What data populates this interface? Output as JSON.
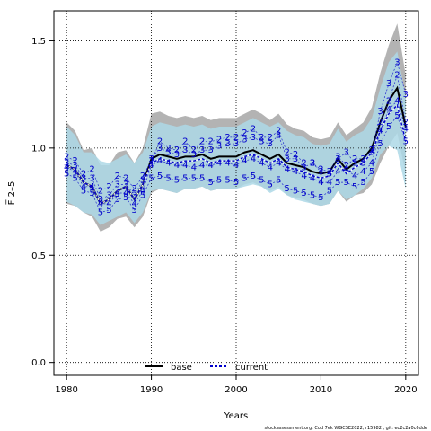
{
  "chart_data": {
    "type": "line",
    "title": "",
    "xlabel": "Years",
    "ylabel": "F̅ 2–5",
    "xlim": [
      1978.5,
      2021.5
    ],
    "ylim": [
      -0.06,
      1.64
    ],
    "xticks": [
      1980,
      1990,
      2000,
      2010,
      2020
    ],
    "xtick_labels": [
      "1980",
      "1990",
      "2000",
      "2010",
      "2020"
    ],
    "yticks": [
      0.0,
      0.5,
      1.0,
      1.5
    ],
    "ytick_labels": [
      "0.0",
      "0.5",
      "1.0",
      "1.5"
    ],
    "grid": true,
    "legend_position": "bottom-center",
    "colors": {
      "base_band": "#b3b3b3",
      "current_band": "#add8e6",
      "overlap_band": "#a3c3d6",
      "base_line": "#000000",
      "current_line": "#0000cc",
      "label_color": "#0000cc"
    },
    "x": [
      1980,
      1981,
      1982,
      1983,
      1984,
      1985,
      1986,
      1987,
      1988,
      1989,
      1990,
      1991,
      1992,
      1993,
      1994,
      1995,
      1996,
      1997,
      1998,
      1999,
      2000,
      2001,
      2002,
      2003,
      2004,
      2005,
      2006,
      2007,
      2008,
      2009,
      2010,
      2011,
      2012,
      2013,
      2014,
      2015,
      2016,
      2017,
      2018,
      2019,
      2020
    ],
    "series": [
      {
        "name": "base",
        "style": "solid",
        "values": [
          0.92,
          0.9,
          0.84,
          0.82,
          0.74,
          0.76,
          0.8,
          0.82,
          0.76,
          0.83,
          0.95,
          0.97,
          0.96,
          0.95,
          0.96,
          0.96,
          0.97,
          0.95,
          0.96,
          0.96,
          0.96,
          0.98,
          0.99,
          0.97,
          0.95,
          0.97,
          0.93,
          0.92,
          0.91,
          0.89,
          0.88,
          0.89,
          0.95,
          0.9,
          0.93,
          0.95,
          1.0,
          1.12,
          1.22,
          1.28,
          1.1
        ],
        "lower": [
          0.74,
          0.73,
          0.7,
          0.68,
          0.61,
          0.63,
          0.67,
          0.68,
          0.63,
          0.68,
          0.79,
          0.81,
          0.8,
          0.79,
          0.81,
          0.81,
          0.82,
          0.8,
          0.81,
          0.81,
          0.81,
          0.83,
          0.84,
          0.82,
          0.8,
          0.82,
          0.78,
          0.77,
          0.76,
          0.74,
          0.73,
          0.74,
          0.8,
          0.75,
          0.78,
          0.79,
          0.83,
          0.93,
          1.01,
          1.07,
          0.88
        ],
        "upper": [
          1.12,
          1.08,
          0.99,
          1.0,
          0.92,
          0.92,
          0.98,
          0.99,
          0.93,
          1.0,
          1.16,
          1.17,
          1.15,
          1.14,
          1.15,
          1.14,
          1.15,
          1.13,
          1.14,
          1.14,
          1.14,
          1.16,
          1.18,
          1.16,
          1.13,
          1.16,
          1.11,
          1.09,
          1.08,
          1.05,
          1.04,
          1.05,
          1.12,
          1.06,
          1.09,
          1.12,
          1.19,
          1.35,
          1.48,
          1.58,
          1.34
        ]
      },
      {
        "name": "current",
        "style": "dashed",
        "values": [
          0.92,
          0.9,
          0.84,
          0.82,
          0.74,
          0.76,
          0.8,
          0.82,
          0.76,
          0.83,
          0.93,
          0.95,
          0.94,
          0.93,
          0.94,
          0.94,
          0.95,
          0.93,
          0.94,
          0.94,
          0.94,
          0.96,
          0.97,
          0.95,
          0.93,
          0.95,
          0.91,
          0.9,
          0.89,
          0.87,
          0.86,
          0.87,
          0.93,
          0.88,
          0.91,
          0.93,
          0.98,
          1.08,
          1.16,
          1.2,
          1.03
        ],
        "lower": [
          0.75,
          0.73,
          0.7,
          0.69,
          0.64,
          0.66,
          0.68,
          0.7,
          0.65,
          0.7,
          0.8,
          0.81,
          0.8,
          0.79,
          0.81,
          0.81,
          0.82,
          0.8,
          0.81,
          0.81,
          0.81,
          0.82,
          0.83,
          0.82,
          0.79,
          0.81,
          0.78,
          0.76,
          0.75,
          0.74,
          0.73,
          0.74,
          0.8,
          0.76,
          0.78,
          0.81,
          0.86,
          0.97,
          1.01,
          0.99,
          0.81
        ],
        "upper": [
          1.1,
          1.06,
          0.98,
          0.98,
          0.94,
          0.93,
          0.95,
          0.97,
          0.93,
          0.98,
          1.1,
          1.12,
          1.11,
          1.1,
          1.11,
          1.1,
          1.11,
          1.09,
          1.1,
          1.1,
          1.1,
          1.12,
          1.14,
          1.12,
          1.1,
          1.12,
          1.08,
          1.06,
          1.05,
          1.02,
          1.01,
          1.02,
          1.09,
          1.03,
          1.06,
          1.08,
          1.14,
          1.28,
          1.4,
          1.45,
          1.24
        ]
      }
    ],
    "age_labels": [
      {
        "age": "2",
        "x": [
          1980,
          1981,
          1982,
          1983,
          1984,
          1985,
          1986,
          1987,
          1988,
          1989,
          1990,
          1991,
          1992,
          1993,
          1994,
          1995,
          1996,
          1997,
          1998,
          1999,
          2000,
          2001,
          2002,
          2003,
          2004,
          2005,
          2006,
          2007,
          2008,
          2009,
          2010,
          2011,
          2012,
          2013,
          2014,
          2015,
          2016,
          2017,
          2018,
          2019,
          2020
        ],
        "y": [
          0.96,
          0.94,
          0.88,
          0.9,
          0.8,
          0.82,
          0.87,
          0.86,
          0.81,
          0.87,
          0.94,
          1.03,
          1.0,
          0.99,
          1.03,
          0.99,
          1.03,
          1.03,
          1.04,
          1.05,
          1.05,
          1.07,
          1.09,
          1.05,
          1.05,
          1.08,
          0.98,
          0.97,
          0.93,
          0.93,
          0.9,
          0.89,
          0.96,
          0.92,
          0.95,
          0.95,
          0.99,
          1.12,
          1.22,
          1.34,
          1.12
        ]
      },
      {
        "age": "3",
        "x": [
          1980,
          1981,
          1982,
          1983,
          1984,
          1985,
          1986,
          1987,
          1988,
          1989,
          1990,
          1991,
          1992,
          1993,
          1994,
          1995,
          1996,
          1997,
          1998,
          1999,
          2000,
          2001,
          2002,
          2003,
          2004,
          2005,
          2006,
          2007,
          2008,
          2009,
          2010,
          2011,
          2012,
          2013,
          2014,
          2015,
          2016,
          2017,
          2018,
          2019,
          2020
        ],
        "y": [
          0.93,
          0.92,
          0.86,
          0.86,
          0.76,
          0.78,
          0.83,
          0.83,
          0.78,
          0.85,
          0.95,
          1.0,
          0.98,
          0.97,
          0.99,
          0.97,
          0.99,
          0.99,
          1.01,
          1.02,
          1.02,
          1.04,
          1.05,
          1.03,
          1.02,
          1.06,
          0.95,
          0.95,
          0.91,
          0.93,
          0.89,
          0.88,
          0.95,
          0.98,
          0.93,
          0.93,
          0.98,
          1.17,
          1.3,
          1.4,
          1.25
        ]
      },
      {
        "age": "4",
        "x": [
          1980,
          1981,
          1982,
          1983,
          1984,
          1985,
          1986,
          1987,
          1988,
          1989,
          1990,
          1991,
          1992,
          1993,
          1994,
          1995,
          1996,
          1997,
          1998,
          1999,
          2000,
          2001,
          2002,
          2003,
          2004,
          2005,
          2006,
          2007,
          2008,
          2009,
          2010,
          2011,
          2012,
          2013,
          2014,
          2015,
          2016,
          2017,
          2018,
          2019,
          2020
        ],
        "y": [
          0.91,
          0.89,
          0.82,
          0.82,
          0.74,
          0.74,
          0.79,
          0.79,
          0.74,
          0.8,
          0.92,
          0.94,
          0.93,
          0.92,
          0.92,
          0.91,
          0.92,
          0.92,
          0.93,
          0.93,
          0.92,
          0.94,
          0.95,
          0.93,
          0.91,
          0.93,
          0.9,
          0.89,
          0.87,
          0.86,
          0.84,
          0.84,
          0.89,
          0.9,
          0.87,
          0.89,
          0.93,
          1.08,
          1.18,
          1.22,
          1.09
        ]
      },
      {
        "age": "5",
        "x": [
          1980,
          1981,
          1982,
          1983,
          1984,
          1985,
          1986,
          1987,
          1988,
          1989,
          1990,
          1991,
          1992,
          1993,
          1994,
          1995,
          1996,
          1997,
          1998,
          1999,
          2000,
          2001,
          2002,
          2003,
          2004,
          2005,
          2006,
          2007,
          2008,
          2009,
          2010,
          2011,
          2012,
          2013,
          2014,
          2015,
          2016,
          2017,
          2018,
          2019,
          2020
        ],
        "y": [
          0.88,
          0.86,
          0.8,
          0.79,
          0.7,
          0.71,
          0.76,
          0.77,
          0.71,
          0.78,
          0.86,
          0.87,
          0.86,
          0.85,
          0.86,
          0.86,
          0.86,
          0.84,
          0.85,
          0.85,
          0.84,
          0.86,
          0.87,
          0.85,
          0.83,
          0.85,
          0.81,
          0.8,
          0.79,
          0.78,
          0.77,
          0.8,
          0.84,
          0.84,
          0.82,
          0.84,
          0.89,
          1.02,
          1.1,
          1.15,
          1.03
        ]
      }
    ],
    "legend": [
      {
        "label": "base",
        "style": "solid"
      },
      {
        "label": "current",
        "style": "dashed"
      }
    ],
    "footnote": "stockassessment.org, Cod  7ek  WGCSE2022, r15982 ,  git:  ec2c2a0c6dde"
  }
}
